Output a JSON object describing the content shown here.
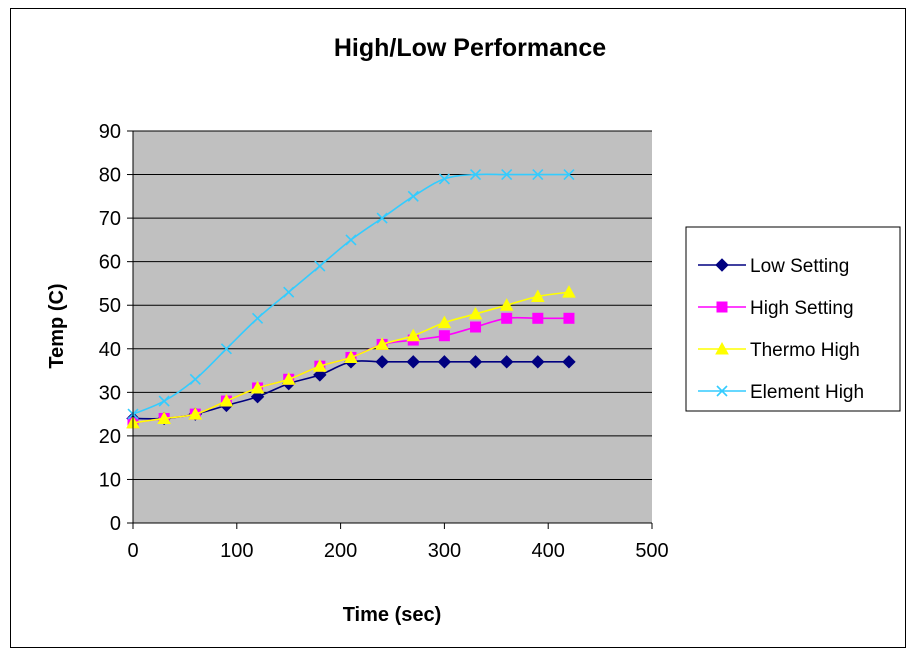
{
  "chart_data": {
    "type": "line",
    "title": "High/Low Performance",
    "xlabel": "Time (sec)",
    "ylabel": "Temp (C)",
    "xlim": [
      0,
      500
    ],
    "ylim": [
      0,
      90
    ],
    "xticks": [
      0,
      100,
      200,
      300,
      400,
      500
    ],
    "yticks": [
      0,
      10,
      20,
      30,
      40,
      50,
      60,
      70,
      80,
      90
    ],
    "grid": "horizontal",
    "legend_position": "right",
    "plot_background": "#c0c0c0",
    "x": [
      0,
      30,
      60,
      90,
      120,
      150,
      180,
      210,
      240,
      270,
      300,
      330,
      360,
      390,
      420
    ],
    "series": [
      {
        "name": "Low Setting",
        "color": "#000080",
        "marker": "diamond",
        "values": [
          24,
          24,
          25,
          27,
          29,
          32,
          34,
          37,
          37,
          37,
          37,
          37,
          37,
          37,
          37
        ]
      },
      {
        "name": "High Setting",
        "color": "#ff00ff",
        "marker": "square",
        "values": [
          23,
          24,
          25,
          28,
          31,
          33,
          36,
          38,
          41,
          42,
          43,
          45,
          47,
          47,
          47
        ]
      },
      {
        "name": "Thermo High",
        "color": "#ffff00",
        "marker": "triangle",
        "values": [
          23,
          24,
          25,
          28,
          31,
          33,
          36,
          38,
          41,
          43,
          46,
          48,
          50,
          52,
          53
        ]
      },
      {
        "name": "Element High",
        "color": "#33ccff",
        "marker": "x",
        "values": [
          25,
          28,
          33,
          40,
          47,
          53,
          59,
          65,
          70,
          75,
          79,
          80,
          80,
          80,
          80
        ]
      }
    ]
  }
}
